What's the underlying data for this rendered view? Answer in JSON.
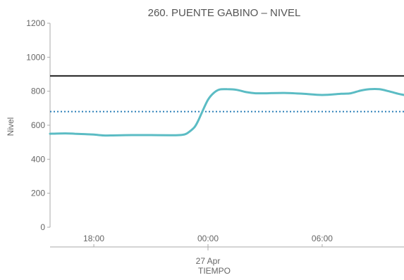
{
  "chart_data": {
    "type": "line",
    "title": "260. PUENTE GABINO – NIVEL",
    "xlabel": "TIEMPO",
    "ylabel": "Nivel",
    "ylim": [
      0,
      1200
    ],
    "yticks": [
      0,
      200,
      400,
      600,
      800,
      1000,
      1200
    ],
    "x_range_hours": [
      -8.3,
      10.3
    ],
    "xticks": [
      {
        "hour": -6,
        "label": "18:00"
      },
      {
        "hour": 0,
        "label": "00:00"
      },
      {
        "hour": 6,
        "label": "06:00"
      }
    ],
    "date_label": {
      "hour": 0,
      "label": "27 Apr"
    },
    "grid": false,
    "reference_lines": [
      {
        "value": 890,
        "style": "solid",
        "color": "#222222"
      },
      {
        "value": 680,
        "style": "dotted",
        "color": "#2b7fb8"
      }
    ],
    "series": [
      {
        "color": "#5bbcc4",
        "x": [
          -8.3,
          -7.5,
          -7,
          -6.5,
          -6,
          -5.5,
          -5,
          -4,
          -3,
          -2,
          -1.5,
          -1.2,
          -1,
          -0.7,
          -0.5,
          -0.3,
          0,
          0.3,
          0.6,
          1,
          1.5,
          2,
          2.5,
          3,
          4,
          5,
          6,
          7,
          7.5,
          8,
          8.5,
          9,
          9.5,
          10,
          10.3
        ],
        "y": [
          550,
          552,
          550,
          548,
          545,
          540,
          540,
          542,
          542,
          541,
          542,
          547,
          560,
          590,
          630,
          680,
          750,
          790,
          810,
          812,
          808,
          795,
          788,
          788,
          790,
          785,
          778,
          785,
          788,
          803,
          812,
          812,
          800,
          785,
          778
        ]
      }
    ]
  }
}
